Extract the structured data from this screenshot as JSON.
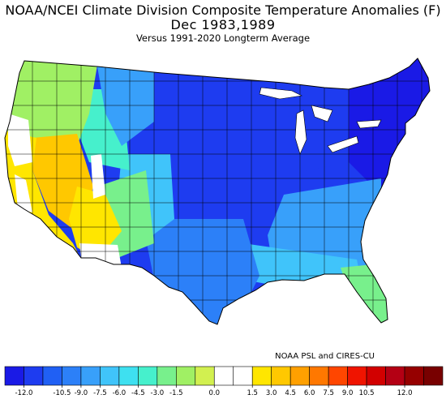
{
  "title": "NOAA/NCEI Climate Division Composite Temperature Anomalies (F)",
  "subtitle": "Dec   1983,1989",
  "caption": "Versus 1991-2020 Longterm Average",
  "credit": "NOAA PSL and CIRES-CU",
  "legend": {
    "bins": [
      {
        "color": "#1a1ae6"
      },
      {
        "color": "#1e3cf0"
      },
      {
        "color": "#2060f4"
      },
      {
        "color": "#2c80f8"
      },
      {
        "color": "#38a0fa"
      },
      {
        "color": "#40c4fa"
      },
      {
        "color": "#3ee0f0"
      },
      {
        "color": "#46f0cc"
      },
      {
        "color": "#78f08c"
      },
      {
        "color": "#a0f064"
      },
      {
        "color": "#d2f050"
      },
      {
        "color": "#ffffff"
      },
      {
        "color": "#ffffff"
      },
      {
        "color": "#ffe600"
      },
      {
        "color": "#ffc800"
      },
      {
        "color": "#ffa000"
      },
      {
        "color": "#ff7800"
      },
      {
        "color": "#ff4600"
      },
      {
        "color": "#f01400"
      },
      {
        "color": "#d20000"
      },
      {
        "color": "#b40014"
      },
      {
        "color": "#960000"
      },
      {
        "color": "#780000"
      }
    ],
    "ticks": [
      {
        "label": "-12.0",
        "pos": 1
      },
      {
        "label": "-10.5",
        "pos": 3
      },
      {
        "label": "-9.0",
        "pos": 4
      },
      {
        "label": "-7.5",
        "pos": 5
      },
      {
        "label": "-6.0",
        "pos": 6
      },
      {
        "label": "-4.5",
        "pos": 7
      },
      {
        "label": "-3.0",
        "pos": 8
      },
      {
        "label": "-1.5",
        "pos": 9
      },
      {
        "label": "0.0",
        "pos": 11
      },
      {
        "label": "1.5",
        "pos": 13
      },
      {
        "label": "3.0",
        "pos": 14
      },
      {
        "label": "4.5",
        "pos": 15
      },
      {
        "label": "6.0",
        "pos": 16
      },
      {
        "label": "7.5",
        "pos": 17
      },
      {
        "label": "9.0",
        "pos": 18
      },
      {
        "label": "10.5",
        "pos": 19
      },
      {
        "label": "12.0",
        "pos": 21
      }
    ]
  },
  "regions": [
    {
      "name": "northeast",
      "color": "#1a1ae6"
    },
    {
      "name": "great-lakes",
      "color": "#1e3cf0"
    },
    {
      "name": "central-plains",
      "color": "#1e3cf0"
    },
    {
      "name": "southeast",
      "color": "#38a0fa"
    },
    {
      "name": "gulf-coast",
      "color": "#40c4fa"
    },
    {
      "name": "florida",
      "color": "#78f08c"
    },
    {
      "name": "texas",
      "color": "#2c80f8"
    },
    {
      "name": "rockies-east",
      "color": "#40c4fa"
    },
    {
      "name": "four-corners",
      "color": "#78f08c"
    },
    {
      "name": "southwest",
      "color": "#ffe600"
    },
    {
      "name": "nevada",
      "color": "#ffc800"
    },
    {
      "name": "california",
      "color": "#ffe600"
    },
    {
      "name": "pacific-northwest",
      "color": "#a0f064"
    },
    {
      "name": "intermountain",
      "color": "#46f0cc"
    },
    {
      "name": "northern-rockies",
      "color": "#38a0fa"
    }
  ]
}
